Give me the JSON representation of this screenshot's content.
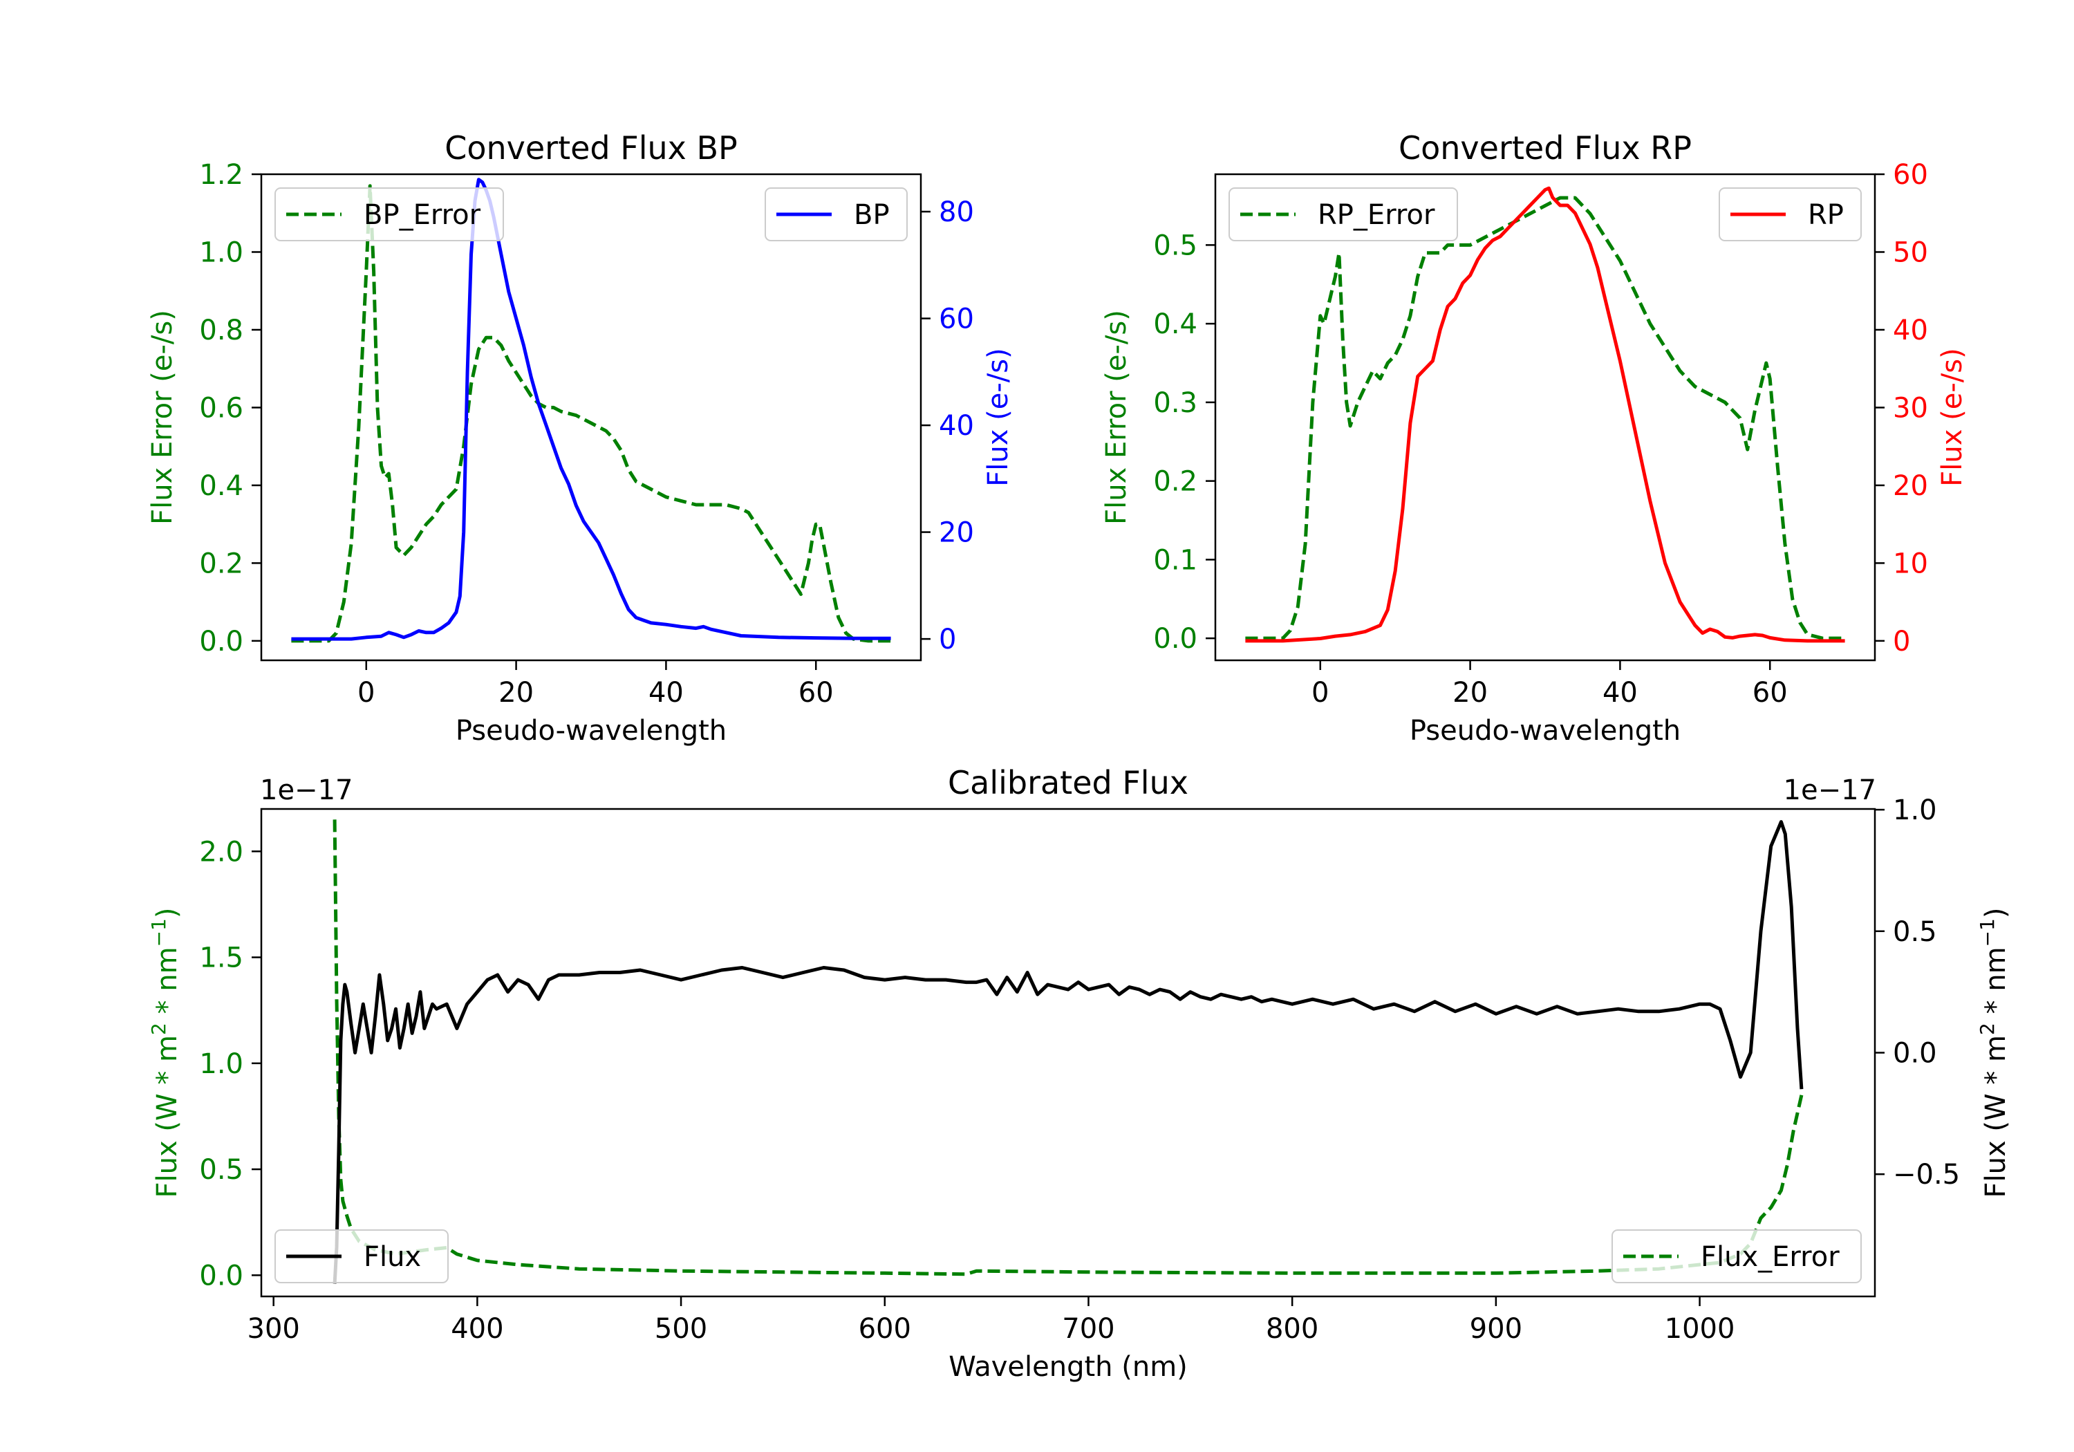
{
  "colors": {
    "green": "#008000",
    "blue": "#0000ff",
    "red": "#ff0000",
    "black": "#000000"
  },
  "chart_data": [
    {
      "id": "bp",
      "type": "line",
      "title": "Converted Flux BP",
      "xlabel": "Pseudo-wavelength",
      "ylabel_left": "Flux Error (e-/s)",
      "ylabel_right": "Flux (e-/s)",
      "xlim": [
        -14,
        74
      ],
      "ylim_left": [
        -0.05,
        1.2
      ],
      "ylim_right": [
        -4,
        87
      ],
      "xticks": [
        0,
        20,
        40,
        60
      ],
      "xtick_labels": [
        "0",
        "20",
        "40",
        "60"
      ],
      "yticks_left": [
        0.0,
        0.2,
        0.4,
        0.6,
        0.8,
        1.0,
        1.2
      ],
      "ytick_labels_left": [
        "0.0",
        "0.2",
        "0.4",
        "0.6",
        "0.8",
        "1.0",
        "1.2"
      ],
      "yticks_right": [
        0,
        20,
        40,
        60,
        80
      ],
      "ytick_labels_right": [
        "0",
        "20",
        "40",
        "60",
        "80"
      ],
      "legend_left": {
        "label": "BP_Error",
        "position": "upper-left"
      },
      "legend_right": {
        "label": "BP",
        "position": "upper-right"
      },
      "series": [
        {
          "name": "BP_Error",
          "axis": "left",
          "color": "#008000",
          "style": "dashed",
          "x": [
            -10,
            -5,
            -4,
            -3,
            -2,
            -1,
            0,
            0.5,
            1,
            1.5,
            2,
            2.5,
            3,
            3.5,
            4,
            5,
            6,
            7,
            8,
            9,
            10,
            11,
            12,
            13,
            14,
            15,
            16,
            17,
            18,
            19,
            20,
            21,
            22,
            23,
            24,
            25,
            26,
            28,
            30,
            32,
            33,
            34,
            35,
            36,
            38,
            40,
            42,
            44,
            46,
            48,
            50,
            51,
            52,
            54,
            56,
            57,
            58,
            59,
            59.5,
            60,
            60.5,
            61,
            62,
            63,
            64,
            65,
            67,
            70
          ],
          "y": [
            0.0,
            0.0,
            0.02,
            0.1,
            0.25,
            0.55,
            0.95,
            1.17,
            0.95,
            0.6,
            0.45,
            0.42,
            0.43,
            0.35,
            0.24,
            0.22,
            0.24,
            0.27,
            0.3,
            0.32,
            0.35,
            0.37,
            0.39,
            0.5,
            0.66,
            0.75,
            0.78,
            0.78,
            0.76,
            0.72,
            0.69,
            0.66,
            0.63,
            0.61,
            0.6,
            0.6,
            0.59,
            0.58,
            0.56,
            0.54,
            0.52,
            0.49,
            0.44,
            0.41,
            0.39,
            0.37,
            0.36,
            0.35,
            0.35,
            0.35,
            0.34,
            0.33,
            0.3,
            0.24,
            0.18,
            0.15,
            0.12,
            0.2,
            0.26,
            0.3,
            0.3,
            0.25,
            0.15,
            0.06,
            0.02,
            0.005,
            0.0,
            0.0
          ]
        },
        {
          "name": "BP",
          "axis": "right",
          "color": "#0000ff",
          "style": "solid",
          "x": [
            -10,
            -8,
            -6,
            -4,
            -2,
            0,
            2,
            3,
            4,
            5,
            6,
            7,
            8,
            9,
            10,
            11,
            12,
            12.5,
            13,
            13.5,
            14,
            14.5,
            15,
            15.5,
            16,
            16.5,
            17,
            18,
            19,
            20,
            21,
            22,
            23,
            24,
            25,
            26,
            27,
            28,
            29,
            30,
            31,
            32,
            33,
            34,
            35,
            36,
            37,
            38,
            40,
            42,
            44,
            45,
            46,
            48,
            50,
            55,
            60,
            65,
            70
          ],
          "y": [
            0,
            0,
            0,
            0,
            0,
            0.3,
            0.5,
            1.2,
            0.8,
            0.3,
            0.8,
            1.5,
            1.2,
            1.2,
            2,
            3,
            5,
            8,
            20,
            50,
            72,
            82,
            86,
            85.5,
            84,
            82,
            79,
            72,
            65,
            60,
            55,
            49,
            44,
            40,
            36,
            32,
            29,
            25,
            22,
            20,
            18,
            15,
            12,
            8.5,
            5.5,
            4,
            3.5,
            3,
            2.7,
            2.3,
            2,
            2.3,
            1.8,
            1.2,
            0.6,
            0.3,
            0.2,
            0.1,
            0.1
          ]
        }
      ]
    },
    {
      "id": "rp",
      "type": "line",
      "title": "Converted Flux RP",
      "xlabel": "Pseudo-wavelength",
      "ylabel_left": "Flux Error (e-/s)",
      "ylabel_right": "Flux (e-/s)",
      "xlim": [
        -14,
        74
      ],
      "ylim_left": [
        -0.028,
        0.59
      ],
      "ylim_right": [
        -2.5,
        60
      ],
      "xticks": [
        0,
        20,
        40,
        60
      ],
      "xtick_labels": [
        "0",
        "20",
        "40",
        "60"
      ],
      "yticks_left": [
        0.0,
        0.1,
        0.2,
        0.3,
        0.4,
        0.5
      ],
      "ytick_labels_left": [
        "0.0",
        "0.1",
        "0.2",
        "0.3",
        "0.4",
        "0.5"
      ],
      "yticks_right": [
        0,
        10,
        20,
        30,
        40,
        50,
        60
      ],
      "ytick_labels_right": [
        "0",
        "10",
        "20",
        "30",
        "40",
        "50",
        "60"
      ],
      "legend_left": {
        "label": "RP_Error",
        "position": "upper-left"
      },
      "legend_right": {
        "label": "RP",
        "position": "upper-right"
      },
      "series": [
        {
          "name": "RP_Error",
          "axis": "left",
          "color": "#008000",
          "style": "dashed",
          "x": [
            -10,
            -5,
            -4,
            -3,
            -2,
            -1,
            0,
            0.5,
            1,
            1.5,
            2,
            2.5,
            3,
            3.5,
            4,
            5,
            6,
            7,
            8,
            9,
            10,
            11,
            12,
            13,
            14,
            15,
            16,
            17,
            18,
            19,
            20,
            22,
            24,
            26,
            28,
            30,
            32,
            33,
            34,
            35,
            36,
            38,
            40,
            42,
            44,
            46,
            48,
            50,
            52,
            54,
            55,
            56,
            57,
            58,
            59,
            59.5,
            60,
            61,
            62,
            63,
            64,
            65,
            67,
            70
          ],
          "y": [
            0.0,
            0.0,
            0.01,
            0.04,
            0.12,
            0.3,
            0.41,
            0.4,
            0.42,
            0.44,
            0.46,
            0.49,
            0.38,
            0.3,
            0.27,
            0.3,
            0.32,
            0.34,
            0.33,
            0.35,
            0.36,
            0.38,
            0.41,
            0.46,
            0.49,
            0.49,
            0.49,
            0.5,
            0.5,
            0.5,
            0.5,
            0.51,
            0.52,
            0.53,
            0.54,
            0.55,
            0.56,
            0.56,
            0.56,
            0.55,
            0.54,
            0.51,
            0.48,
            0.44,
            0.4,
            0.37,
            0.34,
            0.32,
            0.31,
            0.3,
            0.29,
            0.28,
            0.24,
            0.29,
            0.33,
            0.35,
            0.33,
            0.22,
            0.12,
            0.05,
            0.02,
            0.005,
            0.0,
            0.0
          ]
        },
        {
          "name": "RP",
          "axis": "right",
          "color": "#ff0000",
          "style": "solid",
          "x": [
            -10,
            -5,
            0,
            2,
            4,
            6,
            8,
            9,
            10,
            11,
            12,
            13,
            14,
            15,
            16,
            17,
            18,
            19,
            20,
            21,
            22,
            23,
            24,
            25,
            26,
            27,
            28,
            29,
            30,
            30.5,
            31,
            32,
            33,
            34,
            35,
            36,
            37,
            38,
            40,
            42,
            44,
            46,
            48,
            50,
            51,
            52,
            53,
            54,
            55,
            56,
            58,
            59,
            60,
            62,
            65,
            70
          ],
          "y": [
            0,
            0,
            0.3,
            0.6,
            0.8,
            1.2,
            2,
            4,
            9,
            17,
            28,
            34,
            35,
            36,
            40,
            43,
            44,
            46,
            47,
            49,
            50.5,
            51.5,
            52,
            53,
            54,
            55,
            56,
            57,
            58,
            58.2,
            57,
            56,
            56,
            55,
            53,
            51,
            48,
            44,
            36,
            27,
            18,
            10,
            5,
            2,
            1,
            1.5,
            1.2,
            0.5,
            0.4,
            0.6,
            0.8,
            0.7,
            0.4,
            0.1,
            0,
            0
          ]
        }
      ]
    },
    {
      "id": "cal",
      "type": "line",
      "title": "Calibrated Flux",
      "xlabel": "Wavelength (nm)",
      "ylabel_left": "Flux (W * m$^2$ * nm$^{-1}$)",
      "ylabel_right": "Flux (W * m$^2$ * nm$^{-1}$)",
      "ylabel_left_text": "Flux (W * m",
      "ylabel_sup1": "2",
      "ylabel_mid": " * nm",
      "ylabel_sup2": "−1",
      "ylabel_end": ")",
      "offset_left": "1e−17",
      "offset_right": "1e−17",
      "xlim": [
        294,
        1086
      ],
      "ylim_left": [
        -0.1,
        2.2
      ],
      "ylim_right": [
        -1.003,
        1.003
      ],
      "xticks": [
        300,
        400,
        500,
        600,
        700,
        800,
        900,
        1000
      ],
      "xtick_labels": [
        "300",
        "400",
        "500",
        "600",
        "700",
        "800",
        "900",
        "1000"
      ],
      "yticks_left": [
        0.0,
        0.5,
        1.0,
        1.5,
        2.0
      ],
      "ytick_labels_left": [
        "0.0",
        "0.5",
        "1.0",
        "1.5",
        "2.0"
      ],
      "yticks_right": [
        -0.5,
        0.0,
        0.5,
        1.0
      ],
      "ytick_labels_right": [
        "−0.5",
        "0.0",
        "0.5",
        "1.0"
      ],
      "legend_left": {
        "label": "Flux",
        "position": "lower-left"
      },
      "legend_right": {
        "label": "Flux_Error",
        "position": "lower-right"
      },
      "series": [
        {
          "name": "Flux_Error",
          "axis": "left",
          "color": "#008000",
          "style": "dashed",
          "x": [
            330,
            331,
            332,
            333,
            334,
            336,
            338,
            342,
            350,
            360,
            375,
            385,
            390,
            400,
            420,
            450,
            500,
            550,
            600,
            640,
            645,
            700,
            800,
            900,
            950,
            980,
            1000,
            1010,
            1020,
            1025,
            1030,
            1035,
            1040,
            1043,
            1046,
            1050
          ],
          "y": [
            2.15,
            1.3,
            0.75,
            0.45,
            0.35,
            0.28,
            0.22,
            0.16,
            0.12,
            0.1,
            0.12,
            0.13,
            0.1,
            0.07,
            0.05,
            0.03,
            0.02,
            0.015,
            0.01,
            0.005,
            0.02,
            0.015,
            0.01,
            0.01,
            0.02,
            0.03,
            0.05,
            0.06,
            0.1,
            0.15,
            0.27,
            0.32,
            0.4,
            0.52,
            0.68,
            0.85
          ]
        },
        {
          "name": "Flux",
          "axis": "right",
          "color": "#000000",
          "style": "solid",
          "x": [
            330,
            331,
            332,
            333,
            334,
            335,
            336,
            338,
            340,
            342,
            344,
            346,
            348,
            350,
            352,
            354,
            356,
            358,
            360,
            362,
            364,
            366,
            368,
            370,
            372,
            374,
            376,
            378,
            380,
            385,
            390,
            395,
            400,
            405,
            410,
            415,
            420,
            425,
            430,
            435,
            440,
            450,
            460,
            470,
            480,
            490,
            500,
            510,
            520,
            530,
            540,
            550,
            560,
            570,
            580,
            590,
            600,
            610,
            620,
            630,
            640,
            645,
            650,
            655,
            660,
            665,
            670,
            675,
            680,
            685,
            690,
            695,
            700,
            705,
            710,
            715,
            720,
            725,
            730,
            735,
            740,
            745,
            750,
            755,
            760,
            765,
            770,
            775,
            780,
            785,
            790,
            795,
            800,
            810,
            820,
            830,
            840,
            850,
            860,
            870,
            880,
            890,
            900,
            910,
            920,
            930,
            940,
            950,
            960,
            970,
            980,
            990,
            1000,
            1005,
            1010,
            1015,
            1020,
            1025,
            1030,
            1035,
            1040,
            1042,
            1045,
            1048,
            1050
          ],
          "y": [
            -0.95,
            -0.8,
            -0.4,
            0.05,
            0.2,
            0.28,
            0.25,
            0.12,
            0.0,
            0.1,
            0.2,
            0.1,
            0.0,
            0.15,
            0.32,
            0.2,
            0.05,
            0.1,
            0.18,
            0.02,
            0.1,
            0.2,
            0.08,
            0.15,
            0.25,
            0.1,
            0.15,
            0.2,
            0.18,
            0.2,
            0.1,
            0.2,
            0.25,
            0.3,
            0.32,
            0.25,
            0.3,
            0.28,
            0.22,
            0.3,
            0.32,
            0.32,
            0.33,
            0.33,
            0.34,
            0.32,
            0.3,
            0.32,
            0.34,
            0.35,
            0.33,
            0.31,
            0.33,
            0.35,
            0.34,
            0.31,
            0.3,
            0.31,
            0.3,
            0.3,
            0.29,
            0.29,
            0.3,
            0.24,
            0.31,
            0.25,
            0.33,
            0.24,
            0.28,
            0.27,
            0.26,
            0.29,
            0.26,
            0.27,
            0.28,
            0.24,
            0.27,
            0.26,
            0.24,
            0.26,
            0.25,
            0.22,
            0.25,
            0.23,
            0.22,
            0.24,
            0.23,
            0.22,
            0.23,
            0.21,
            0.22,
            0.21,
            0.2,
            0.22,
            0.2,
            0.22,
            0.18,
            0.2,
            0.17,
            0.21,
            0.17,
            0.2,
            0.16,
            0.19,
            0.16,
            0.19,
            0.16,
            0.17,
            0.18,
            0.17,
            0.17,
            0.18,
            0.2,
            0.2,
            0.18,
            0.05,
            -0.1,
            0.0,
            0.5,
            0.85,
            0.95,
            0.9,
            0.6,
            0.1,
            -0.15
          ]
        }
      ]
    }
  ]
}
